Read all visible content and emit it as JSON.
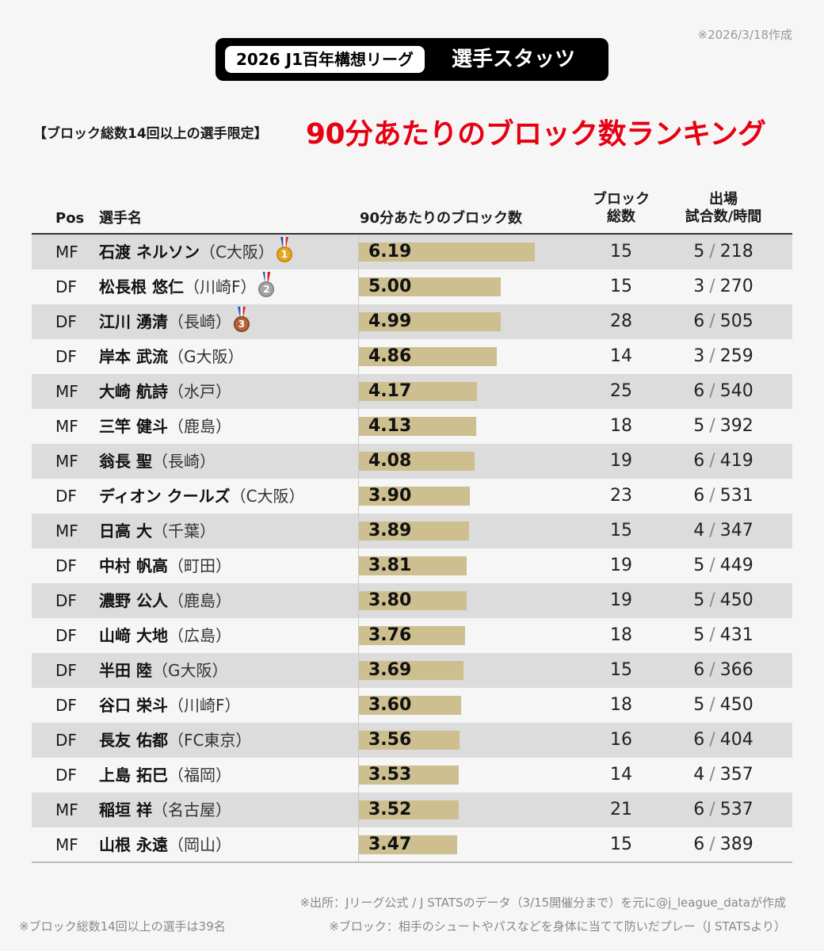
{
  "created_note": "※2026/3/18作成",
  "title": {
    "league": "2026 J1百年構想リーグ",
    "main": "選手スタッツ"
  },
  "subnote": "【ブロック総数14回以上の選手限定】",
  "headline": "90分あたりのブロック数ランキング",
  "columns": {
    "pos": "Pos",
    "name": "選手名",
    "metric": "90分あたりのブロック数",
    "blocks_line1": "ブロック",
    "blocks_line2": "総数",
    "apps_line1": "出場",
    "apps_line2": "試合数/時間"
  },
  "chart_data": {
    "type": "bar",
    "orientation": "horizontal",
    "title": "90分あたりのブロック数ランキング",
    "xlabel": "90分あたりのブロック数",
    "xlim": [
      0,
      6.19
    ],
    "rows": [
      {
        "pos": "MF",
        "name": "石渡 ネルソン",
        "team": "（C大阪）",
        "medal": "gold",
        "medal_num": "1",
        "value": 6.19,
        "value_label": "6.19",
        "blocks": "15",
        "games": "5",
        "minutes": "218"
      },
      {
        "pos": "DF",
        "name": "松長根 悠仁",
        "team": "（川崎F）",
        "medal": "silver",
        "medal_num": "2",
        "value": 5.0,
        "value_label": "5.00",
        "blocks": "15",
        "games": "3",
        "minutes": "270"
      },
      {
        "pos": "DF",
        "name": "江川 湧清",
        "team": "（長崎）",
        "medal": "bronze",
        "medal_num": "3",
        "value": 4.99,
        "value_label": "4.99",
        "blocks": "28",
        "games": "6",
        "minutes": "505"
      },
      {
        "pos": "DF",
        "name": "岸本 武流",
        "team": "（G大阪）",
        "medal": "",
        "medal_num": "",
        "value": 4.86,
        "value_label": "4.86",
        "blocks": "14",
        "games": "3",
        "minutes": "259"
      },
      {
        "pos": "MF",
        "name": "大崎 航詩",
        "team": "（水戸）",
        "medal": "",
        "medal_num": "",
        "value": 4.17,
        "value_label": "4.17",
        "blocks": "25",
        "games": "6",
        "minutes": "540"
      },
      {
        "pos": "MF",
        "name": "三竿 健斗",
        "team": "（鹿島）",
        "medal": "",
        "medal_num": "",
        "value": 4.13,
        "value_label": "4.13",
        "blocks": "18",
        "games": "5",
        "minutes": "392"
      },
      {
        "pos": "MF",
        "name": "翁長 聖",
        "team": "（長崎）",
        "medal": "",
        "medal_num": "",
        "value": 4.08,
        "value_label": "4.08",
        "blocks": "19",
        "games": "6",
        "minutes": "419"
      },
      {
        "pos": "DF",
        "name": "ディオン クールズ",
        "team": "（C大阪）",
        "medal": "",
        "medal_num": "",
        "value": 3.9,
        "value_label": "3.90",
        "blocks": "23",
        "games": "6",
        "minutes": "531"
      },
      {
        "pos": "MF",
        "name": "日高 大",
        "team": "（千葉）",
        "medal": "",
        "medal_num": "",
        "value": 3.89,
        "value_label": "3.89",
        "blocks": "15",
        "games": "4",
        "minutes": "347"
      },
      {
        "pos": "DF",
        "name": "中村 帆高",
        "team": "（町田）",
        "medal": "",
        "medal_num": "",
        "value": 3.81,
        "value_label": "3.81",
        "blocks": "19",
        "games": "5",
        "minutes": "449"
      },
      {
        "pos": "DF",
        "name": "濃野 公人",
        "team": "（鹿島）",
        "medal": "",
        "medal_num": "",
        "value": 3.8,
        "value_label": "3.80",
        "blocks": "19",
        "games": "5",
        "minutes": "450"
      },
      {
        "pos": "DF",
        "name": "山﨑 大地",
        "team": "（広島）",
        "medal": "",
        "medal_num": "",
        "value": 3.76,
        "value_label": "3.76",
        "blocks": "18",
        "games": "5",
        "minutes": "431"
      },
      {
        "pos": "DF",
        "name": "半田 陸",
        "team": "（G大阪）",
        "medal": "",
        "medal_num": "",
        "value": 3.69,
        "value_label": "3.69",
        "blocks": "15",
        "games": "6",
        "minutes": "366"
      },
      {
        "pos": "DF",
        "name": "谷口 栄斗",
        "team": "（川崎F）",
        "medal": "",
        "medal_num": "",
        "value": 3.6,
        "value_label": "3.60",
        "blocks": "18",
        "games": "5",
        "minutes": "450"
      },
      {
        "pos": "DF",
        "name": "長友 佑都",
        "team": "（FC東京）",
        "medal": "",
        "medal_num": "",
        "value": 3.56,
        "value_label": "3.56",
        "blocks": "16",
        "games": "6",
        "minutes": "404"
      },
      {
        "pos": "DF",
        "name": "上島 拓巳",
        "team": "（福岡）",
        "medal": "",
        "medal_num": "",
        "value": 3.53,
        "value_label": "3.53",
        "blocks": "14",
        "games": "4",
        "minutes": "357"
      },
      {
        "pos": "MF",
        "name": "稲垣 祥",
        "team": "（名古屋）",
        "medal": "",
        "medal_num": "",
        "value": 3.52,
        "value_label": "3.52",
        "blocks": "21",
        "games": "6",
        "minutes": "537"
      },
      {
        "pos": "MF",
        "name": "山根 永遠",
        "team": "（岡山）",
        "medal": "",
        "medal_num": "",
        "value": 3.47,
        "value_label": "3.47",
        "blocks": "15",
        "games": "6",
        "minutes": "389"
      }
    ]
  },
  "colors": {
    "bar": "#cdbf90",
    "headline": "#e60012",
    "row_shade": "#dcdcdc"
  },
  "footer": {
    "source": "※出所：Jリーグ公式 / J STATSのデータ（3/15開催分まで）を元に@j_league_dataが作成",
    "count_note": "※ブロック総数14回以上の選手は39名",
    "block_def": "※ブロック：相手のシュートやパスなどを身体に当てて防いだプレー（J STATSより）"
  }
}
